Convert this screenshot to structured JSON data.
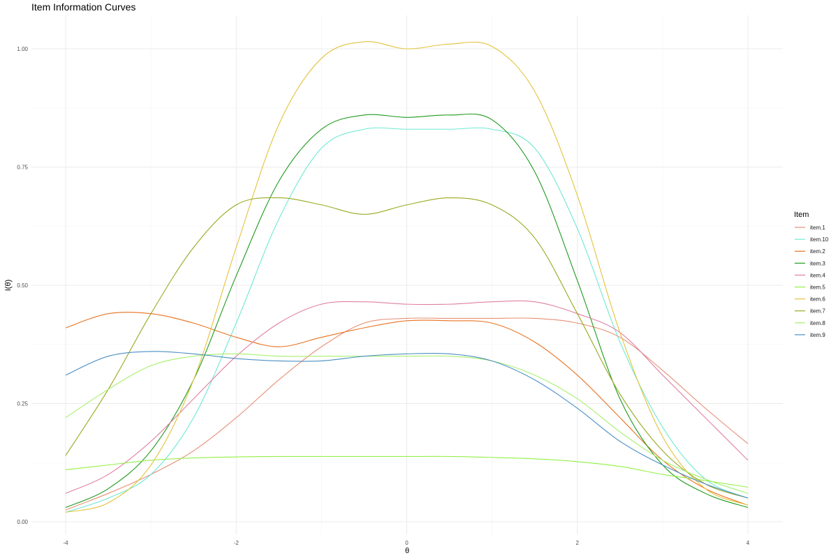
{
  "chart_data": {
    "type": "line",
    "title": "Item Information Curves",
    "xlabel": "θ",
    "ylabel": "I(θ)",
    "xlim": [
      -4,
      4
    ],
    "ylim": [
      0,
      1.05
    ],
    "x_ticks": [
      -4,
      -2,
      0,
      2,
      4
    ],
    "y_ticks": [
      0,
      0.25,
      0.5,
      0.75,
      1.0
    ],
    "x_tick_labels": [
      "-4",
      "-2",
      "0",
      "2",
      "4"
    ],
    "y_tick_labels": [
      "0.00",
      "0.25",
      "0.50",
      "0.75",
      "1.00"
    ],
    "grid": true,
    "legend": {
      "title": "Item",
      "position": "right"
    },
    "x": [
      -4,
      -3.5,
      -3,
      -2.5,
      -2,
      -1.5,
      -1,
      -0.5,
      0,
      0.5,
      1,
      1.5,
      2,
      2.5,
      3,
      3.5,
      4
    ],
    "series": [
      {
        "name": "item.1",
        "color": "#e58f74",
        "values": [
          0.025,
          0.06,
          0.1,
          0.15,
          0.22,
          0.3,
          0.37,
          0.42,
          0.43,
          0.43,
          0.43,
          0.43,
          0.42,
          0.39,
          0.32,
          0.24,
          0.165
        ]
      },
      {
        "name": "item.10",
        "color": "#6ee8d3",
        "values": [
          0.02,
          0.05,
          0.1,
          0.22,
          0.42,
          0.64,
          0.79,
          0.83,
          0.83,
          0.83,
          0.83,
          0.79,
          0.62,
          0.38,
          0.2,
          0.09,
          0.05
        ]
      },
      {
        "name": "item.2",
        "color": "#e8721f",
        "values": [
          0.41,
          0.44,
          0.44,
          0.42,
          0.39,
          0.37,
          0.39,
          0.41,
          0.425,
          0.425,
          0.42,
          0.38,
          0.31,
          0.22,
          0.13,
          0.07,
          0.035
        ]
      },
      {
        "name": "item.3",
        "color": "#1e9a1e",
        "values": [
          0.03,
          0.07,
          0.15,
          0.3,
          0.52,
          0.72,
          0.83,
          0.86,
          0.855,
          0.86,
          0.85,
          0.74,
          0.51,
          0.26,
          0.12,
          0.06,
          0.03
        ]
      },
      {
        "name": "item.4",
        "color": "#df7fa1",
        "values": [
          0.06,
          0.1,
          0.17,
          0.26,
          0.35,
          0.42,
          0.46,
          0.465,
          0.46,
          0.46,
          0.465,
          0.465,
          0.44,
          0.4,
          0.31,
          0.22,
          0.13
        ]
      },
      {
        "name": "item.5",
        "color": "#93f045",
        "values": [
          0.11,
          0.12,
          0.13,
          0.135,
          0.137,
          0.138,
          0.138,
          0.138,
          0.138,
          0.138,
          0.136,
          0.133,
          0.127,
          0.117,
          0.1,
          0.087,
          0.073
        ]
      },
      {
        "name": "item.6",
        "color": "#e3c23b",
        "values": [
          0.02,
          0.04,
          0.12,
          0.3,
          0.58,
          0.84,
          0.98,
          1.015,
          1.0,
          1.01,
          1.005,
          0.91,
          0.69,
          0.4,
          0.18,
          0.07,
          0.035
        ]
      },
      {
        "name": "item.7",
        "color": "#99a81f",
        "values": [
          0.14,
          0.28,
          0.44,
          0.58,
          0.67,
          0.685,
          0.67,
          0.65,
          0.67,
          0.685,
          0.67,
          0.6,
          0.44,
          0.27,
          0.15,
          0.08,
          0.05
        ]
      },
      {
        "name": "item.8",
        "color": "#a7ef6c",
        "values": [
          0.22,
          0.28,
          0.33,
          0.35,
          0.355,
          0.35,
          0.35,
          0.35,
          0.35,
          0.35,
          0.34,
          0.31,
          0.26,
          0.19,
          0.13,
          0.09,
          0.06
        ]
      },
      {
        "name": "item.9",
        "color": "#4b8fc3",
        "values": [
          0.31,
          0.35,
          0.36,
          0.355,
          0.345,
          0.34,
          0.34,
          0.35,
          0.355,
          0.355,
          0.34,
          0.3,
          0.24,
          0.17,
          0.12,
          0.08,
          0.05
        ]
      }
    ]
  }
}
